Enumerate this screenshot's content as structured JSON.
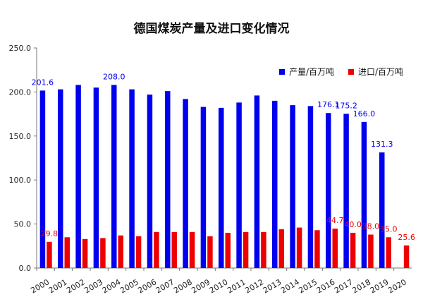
{
  "chart_data": {
    "type": "bar",
    "title": "德国煤炭产量及进口变化情况",
    "categories": [
      "2000",
      "2001",
      "2002",
      "2003",
      "2004",
      "2005",
      "2006",
      "2007",
      "2008",
      "2009",
      "2010",
      "2011",
      "2012",
      "2013",
      "2014",
      "2015",
      "2016",
      "2017",
      "2018",
      "2019",
      "2020"
    ],
    "series": [
      {
        "name": "产量/百万吨",
        "color": "#0000ee",
        "values": [
          201.6,
          203,
          208,
          205,
          208.0,
          203,
          197,
          201,
          192,
          183,
          182,
          188,
          196,
          190,
          185,
          184,
          176.1,
          175.2,
          166.0,
          131.3,
          null
        ],
        "labels": {
          "2000": "201.6",
          "2004": "208.0",
          "2016": "176.1",
          "2017": "175.2",
          "2018": "166.0",
          "2019": "131.3"
        }
      },
      {
        "name": "进口/百万吨",
        "color": "#ee0000",
        "values": [
          29.8,
          35,
          33,
          34,
          37,
          36,
          41,
          41,
          41,
          36,
          40,
          41,
          41,
          44,
          46,
          43,
          44.7,
          40.0,
          38.0,
          35.0,
          25.6
        ],
        "labels": {
          "2000": "29.8",
          "2016": "44.7",
          "2017": "40.0",
          "2018": "38.0",
          "2019": "35.0",
          "2020": "25.6"
        }
      }
    ],
    "ylim": [
      0,
      250
    ],
    "yticks": [
      "0.0",
      "50.0",
      "100.0",
      "150.0",
      "200.0",
      "250.0"
    ],
    "legend_position": "top-right",
    "grid": false
  }
}
